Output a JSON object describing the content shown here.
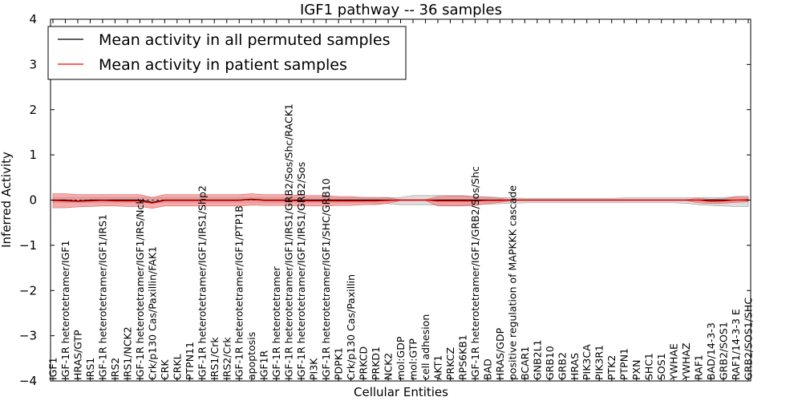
{
  "chart_data": {
    "type": "line",
    "title": "IGF1 pathway -- 36 samples",
    "xlabel": "Cellular Entities",
    "ylabel": "Inferred Activity",
    "ylim": [
      -4,
      4
    ],
    "yticks": [
      -4,
      -3,
      -2,
      -1,
      0,
      1,
      2,
      3,
      4
    ],
    "ytick_labels": [
      "−4",
      "−3",
      "−2",
      "−1",
      "0",
      "1",
      "2",
      "3",
      "4"
    ],
    "legend_position": "top-left",
    "colors": {
      "permuted": "#000000",
      "patient": "#ff0000",
      "patient_band": "#f08080",
      "permuted_band": "#c8c8c8"
    },
    "categories": [
      "IGF1",
      "IGF-1R heterotetramer/IGF1",
      "HRAS/GTP",
      "IRS1",
      "IGF-1R heterotetramer/IGF1/IRS1",
      "IRS2",
      "IRS1/NCK2",
      "IGF-1R heterotetramer/IGF1/IRS/Nck",
      "Crk/p130 Cas/Paxillin/FAK1",
      "CRK",
      "CRKL",
      "PTPN11",
      "IGF-1R heterotetramer/IGF1/IRS1/Shp2",
      "IRS1/Crk",
      "IRS2/Crk",
      "IGF-1R heterotetramer/IGF1/PTP1B",
      "apoptosis",
      "IGF1R",
      "IGF-1R heterotetramer",
      "IGF-1R heterotetramer/IGF1/IRS1/GRB2/Sos/Shc/RACK1",
      "IGF-1R heterotetramer/IGF1/IRS1/GRB2/Sos",
      "PI3K",
      "IGF-1R heterotetramer/IGF1/SHC/GRB10",
      "PDPK1",
      "Crk/p130 Cas/Paxillin",
      "PRKCD",
      "PRKD1",
      "NCK2",
      "mol:GDP",
      "mol:GTP",
      "cell adhesion",
      "AKT1",
      "PRKCZ",
      "RPS6KB1",
      "IGF-1R heterotetramer/IGF1/GRB2/Sos/Shc",
      "BAD",
      "HRAS/GDP",
      "positive regulation of MAPKKK cascade",
      "BCAR1",
      "GNB2L1",
      "GRB10",
      "GRB2",
      "HRAS",
      "PIK3CA",
      "PIK3R1",
      "PTK2",
      "PTPN1",
      "PXN",
      "SHC1",
      "SOS1",
      "YWHAE",
      "YWHAZ",
      "RAF1",
      "BAD/14-3-3",
      "GRB2/SOS1",
      "RAF1/14-3-3 E",
      "GRB2/SOS1/SHC"
    ],
    "series": [
      {
        "name": "Mean activity in all permuted samples",
        "color": "#000000",
        "values": [
          0,
          0,
          -0.02,
          0,
          0,
          0,
          0,
          0,
          -0.05,
          0,
          0,
          0,
          0,
          0,
          0,
          0,
          0.02,
          0,
          0,
          0,
          0,
          0,
          0,
          0,
          0,
          0,
          0,
          0,
          0,
          0,
          0,
          0,
          0,
          0,
          0,
          0,
          0,
          0,
          0,
          0,
          0,
          0,
          0,
          0,
          0,
          0,
          0,
          0,
          0,
          0,
          0,
          0,
          0,
          0,
          0,
          0,
          0
        ]
      },
      {
        "name": "Mean activity in patient samples",
        "color": "#ff0000",
        "values": [
          -0.01,
          -0.02,
          -0.03,
          -0.02,
          -0.01,
          -0.02,
          -0.02,
          -0.02,
          -0.07,
          -0.01,
          -0.01,
          -0.01,
          -0.01,
          -0.01,
          -0.01,
          -0.01,
          0.01,
          -0.01,
          -0.01,
          -0.01,
          -0.02,
          -0.02,
          -0.02,
          -0.02,
          -0.02,
          -0.02,
          -0.02,
          -0.01,
          0,
          0,
          0,
          -0.02,
          -0.02,
          -0.02,
          -0.02,
          -0.01,
          -0.01,
          0,
          0,
          0,
          0,
          0,
          0,
          0,
          0,
          0,
          0,
          0,
          0,
          0,
          0,
          0,
          0,
          -0.03,
          -0.02,
          0,
          0.01
        ]
      }
    ],
    "patient_band": {
      "upper": [
        0.14,
        0.14,
        0.12,
        0.12,
        0.12,
        0.12,
        0.12,
        0.12,
        0.06,
        0.12,
        0.12,
        0.12,
        0.12,
        0.12,
        0.12,
        0.12,
        0.14,
        0.12,
        0.12,
        0.12,
        0.1,
        0.1,
        0.1,
        0.08,
        0.08,
        0.06,
        0.06,
        0.05,
        0.01,
        0.01,
        0.01,
        0.08,
        0.09,
        0.09,
        0.08,
        0.06,
        0.04,
        0.01,
        0.01,
        0.01,
        0.01,
        0.01,
        0.01,
        0.01,
        0.01,
        0.01,
        0.01,
        0.01,
        0.01,
        0.01,
        0.01,
        0.01,
        0.04,
        0.02,
        0.03,
        0.07,
        0.06
      ],
      "lower": [
        -0.17,
        -0.17,
        -0.15,
        -0.14,
        -0.13,
        -0.13,
        -0.14,
        -0.14,
        -0.18,
        -0.13,
        -0.13,
        -0.13,
        -0.13,
        -0.13,
        -0.13,
        -0.13,
        -0.11,
        -0.12,
        -0.12,
        -0.12,
        -0.13,
        -0.13,
        -0.13,
        -0.12,
        -0.12,
        -0.1,
        -0.1,
        -0.07,
        -0.01,
        -0.01,
        -0.01,
        -0.13,
        -0.13,
        -0.13,
        -0.12,
        -0.08,
        -0.05,
        -0.01,
        -0.01,
        -0.01,
        -0.01,
        -0.01,
        -0.01,
        -0.01,
        -0.01,
        -0.01,
        -0.01,
        -0.01,
        -0.01,
        -0.01,
        -0.01,
        -0.01,
        -0.06,
        -0.08,
        -0.07,
        -0.05,
        -0.04
      ]
    },
    "permuted_band": {
      "upper": [
        0.06,
        0.06,
        0.06,
        0.06,
        0.06,
        0.06,
        0.06,
        0.06,
        0.06,
        0.06,
        0.06,
        0.06,
        0.06,
        0.06,
        0.06,
        0.06,
        0.06,
        0.06,
        0.06,
        0.06,
        0.06,
        0.06,
        0.06,
        0.06,
        0.06,
        0.06,
        0.06,
        0.06,
        0.06,
        0.1,
        0.1,
        0.1,
        0.1,
        0.1,
        0.08,
        0.07,
        0.06,
        0.05,
        0.04,
        0.04,
        0.04,
        0.04,
        0.04,
        0.04,
        0.04,
        0.04,
        0.05,
        0.05,
        0.05,
        0.05,
        0.05,
        0.05,
        0.06,
        0.06,
        0.06,
        0.08,
        0.09
      ],
      "lower": [
        -0.06,
        -0.06,
        -0.06,
        -0.06,
        -0.06,
        -0.06,
        -0.06,
        -0.06,
        -0.06,
        -0.06,
        -0.06,
        -0.06,
        -0.06,
        -0.06,
        -0.06,
        -0.06,
        -0.06,
        -0.06,
        -0.06,
        -0.06,
        -0.06,
        -0.06,
        -0.06,
        -0.06,
        -0.06,
        -0.06,
        -0.07,
        -0.08,
        -0.1,
        -0.1,
        -0.1,
        -0.11,
        -0.12,
        -0.12,
        -0.1,
        -0.09,
        -0.08,
        -0.07,
        -0.06,
        -0.06,
        -0.06,
        -0.06,
        -0.06,
        -0.06,
        -0.06,
        -0.06,
        -0.06,
        -0.06,
        -0.06,
        -0.06,
        -0.06,
        -0.07,
        -0.1,
        -0.12,
        -0.13,
        -0.14,
        -0.14
      ]
    }
  }
}
